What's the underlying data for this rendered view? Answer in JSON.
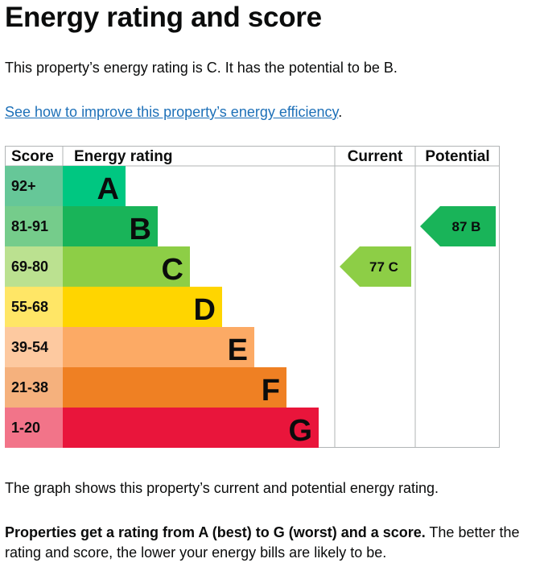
{
  "page": {
    "title": "Energy rating and score",
    "intro": "This property’s energy rating is C. It has the potential to be B.",
    "improve_link": "See how to improve this property’s energy efficiency",
    "improve_suffix": ".",
    "graph_description": "The graph shows this property’s current and potential energy rating.",
    "rating_explain_bold": "Properties get a rating from A (best) to G (worst) and a score.",
    "rating_explain_rest": " The better the rating and score, the lower your energy bills are likely to be."
  },
  "chart_data": {
    "type": "table",
    "headers": {
      "score": "Score",
      "rating": "Energy rating",
      "current": "Current",
      "potential": "Potential"
    },
    "bands": [
      {
        "letter": "A",
        "score_range": "92+",
        "color": "#008054",
        "score_color": "#66c798",
        "bar_color": "#00c781"
      },
      {
        "letter": "B",
        "score_range": "81-91",
        "color": "#19b459",
        "score_color": "#75cc8b",
        "bar_color": "#19b459"
      },
      {
        "letter": "C",
        "score_range": "69-80",
        "color": "#8dce46",
        "score_color": "#bbe190",
        "bar_color": "#8dce46"
      },
      {
        "letter": "D",
        "score_range": "55-68",
        "color": "#ffd500",
        "score_color": "#ffe666",
        "bar_color": "#ffd500"
      },
      {
        "letter": "E",
        "score_range": "39-54",
        "color": "#fcaa65",
        "score_color": "#fdc9a0",
        "bar_color": "#fcaa65"
      },
      {
        "letter": "F",
        "score_range": "21-38",
        "color": "#ef8023",
        "score_color": "#f5b17d",
        "bar_color": "#ef8023"
      },
      {
        "letter": "G",
        "score_range": "1-20",
        "color": "#e9153b",
        "score_color": "#f27489",
        "bar_color": "#e9153b"
      }
    ],
    "current": {
      "score": 77,
      "letter": "C",
      "label": "77 C",
      "color": "#8dce46"
    },
    "potential": {
      "score": 87,
      "letter": "B",
      "label": "87 B",
      "color": "#19b459"
    }
  }
}
